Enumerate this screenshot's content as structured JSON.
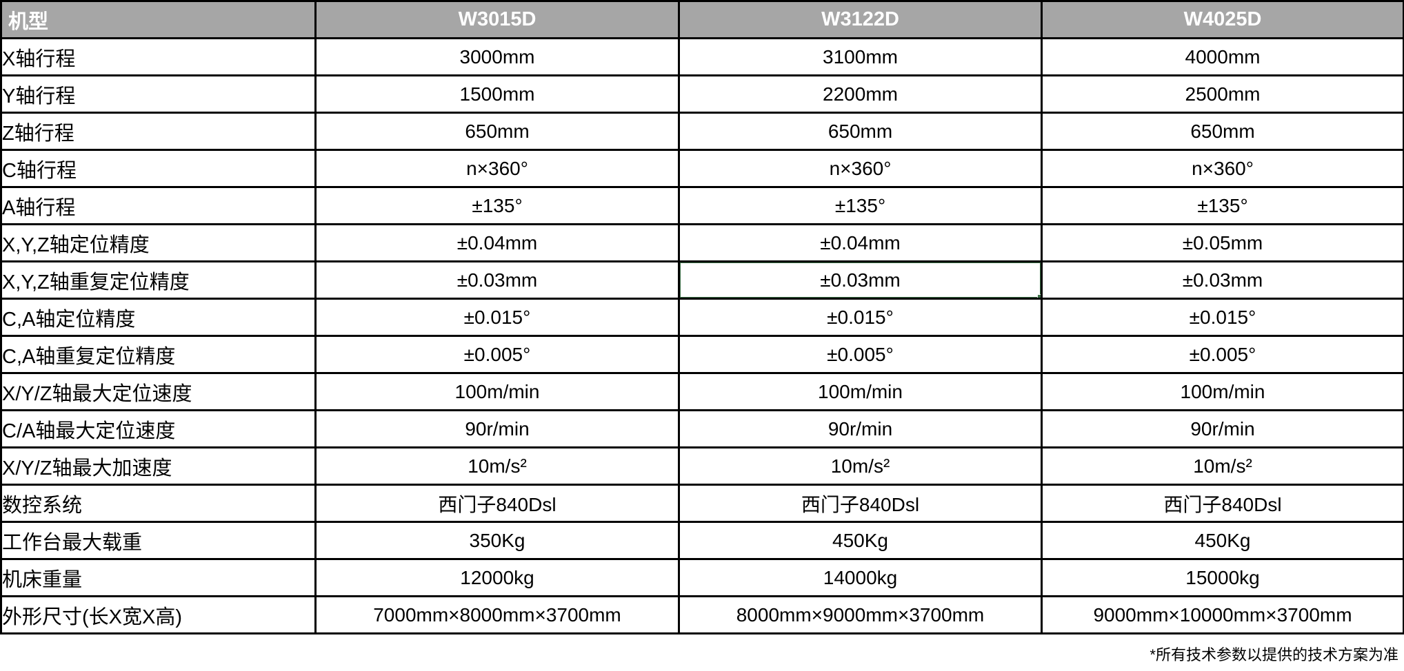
{
  "table": {
    "header": {
      "model_label": "机型",
      "models": [
        "W3015D",
        "W3122D",
        "W4025D"
      ]
    },
    "rows": [
      {
        "label": "X轴行程",
        "values": [
          "3000mm",
          "3100mm",
          "4000mm"
        ]
      },
      {
        "label": "Y轴行程",
        "values": [
          "1500mm",
          "2200mm",
          "2500mm"
        ]
      },
      {
        "label": "Z轴行程",
        "values": [
          "650mm",
          "650mm",
          "650mm"
        ]
      },
      {
        "label": "C轴行程",
        "values": [
          "n×360°",
          "n×360°",
          "n×360°"
        ]
      },
      {
        "label": "A轴行程",
        "values": [
          "±135°",
          "±135°",
          "±135°"
        ]
      },
      {
        "label": "X,Y,Z轴定位精度",
        "values": [
          "±0.04mm",
          "±0.04mm",
          "±0.05mm"
        ]
      },
      {
        "label": "X,Y,Z轴重复定位精度",
        "values": [
          "±0.03mm",
          "±0.03mm",
          "±0.03mm"
        ]
      },
      {
        "label": "C,A轴定位精度",
        "values": [
          "±0.015°",
          "±0.015°",
          "±0.015°"
        ]
      },
      {
        "label": "C,A轴重复定位精度",
        "values": [
          "±0.005°",
          "±0.005°",
          "±0.005°"
        ]
      },
      {
        "label": "X/Y/Z轴最大定位速度",
        "values": [
          "100m/min",
          "100m/min",
          "100m/min"
        ]
      },
      {
        "label": "C/A轴最大定位速度",
        "values": [
          "90r/min",
          "90r/min",
          "90r/min"
        ]
      },
      {
        "label": "X/Y/Z轴最大加速度",
        "values": [
          "10m/s²",
          "10m/s²",
          "10m/s²"
        ]
      },
      {
        "label": "数控系统",
        "values": [
          "西门子840Dsl",
          "西门子840Dsl",
          "西门子840Dsl"
        ]
      },
      {
        "label": "工作台最大载重",
        "values": [
          "350Kg",
          "450Kg",
          "450Kg"
        ]
      },
      {
        "label": "机床重量",
        "values": [
          "12000kg",
          "14000kg",
          "15000kg"
        ]
      },
      {
        "label": "外形尺寸(长X宽X高)",
        "values": [
          "7000mm×8000mm×3700mm",
          "8000mm×9000mm×3700mm",
          "9000mm×10000mm×3700mm"
        ]
      }
    ],
    "selection": {
      "row_index": 6,
      "col_index": 1,
      "row_label": "X,Y,Z轴重复定位精度",
      "column": "W3122D",
      "value": "±0.03mm",
      "border_color": "#3d7148"
    }
  },
  "footnote": "*所有技术参数以提供的技术方案为准",
  "colors": {
    "header_bg": "#a6a6a6",
    "header_text": "#ffffff",
    "grid": "#000000",
    "selection_green": "#3d7148"
  }
}
